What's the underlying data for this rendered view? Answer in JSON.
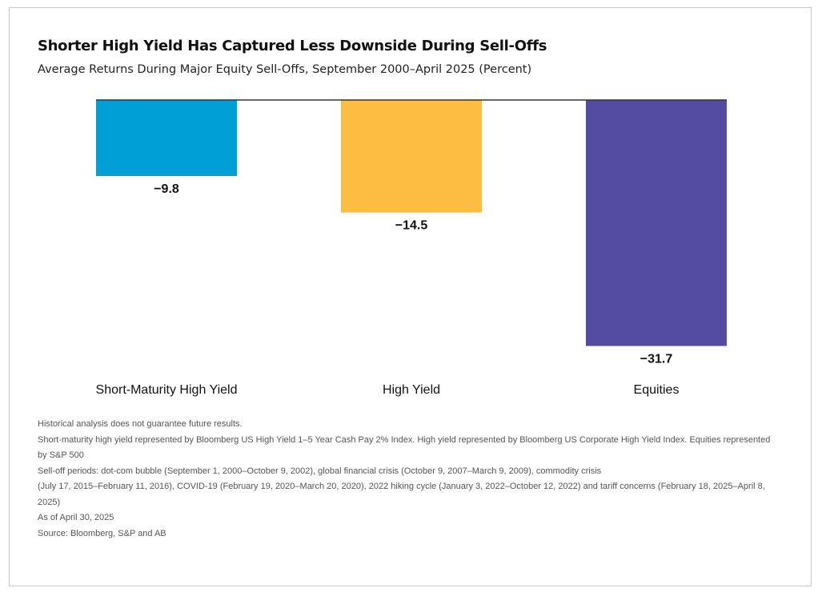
{
  "header": {
    "title": "Shorter High Yield Has Captured Less Downside During Sell-Offs",
    "subtitle": "Average Returns During Major Equity Sell-Offs, September 2000–April 2025 (Percent)"
  },
  "chart_data": {
    "type": "bar",
    "categories": [
      "Short-Maturity High Yield",
      "High Yield",
      "Equities"
    ],
    "values": [
      -9.8,
      -14.5,
      -31.7
    ],
    "data_labels": [
      "−9.8",
      "−14.5",
      "−31.7"
    ],
    "colors": [
      "#009fd6",
      "#fdbd42",
      "#544ca3"
    ],
    "axis_color": "#333333",
    "ylim": [
      -34,
      0
    ],
    "grid": false,
    "legend": "none"
  },
  "notes": {
    "disclaimer": "Historical analysis does not guarantee future results.",
    "line1": "Short-maturity high yield represented by Bloomberg US High Yield 1–5 Year Cash Pay 2% Index. High yield represented by Bloomberg US Corporate High Yield Index. Equities represented by S&P 500",
    "line2": "Sell-off periods: dot-com bubble (September 1, 2000–October 9, 2002), global financial crisis (October 9, 2007–March 9, 2009), commodity crisis",
    "line3": "(July 17, 2015–February 11, 2016), COVID-19 (February 19, 2020–March 20, 2020), 2022 hiking cycle (January 3, 2022–October 12, 2022) and tariff concerns (February 18, 2025–April 8, 2025)",
    "as_of": "As of April 30, 2025",
    "source": "Source: Bloomberg, S&P and AB"
  }
}
